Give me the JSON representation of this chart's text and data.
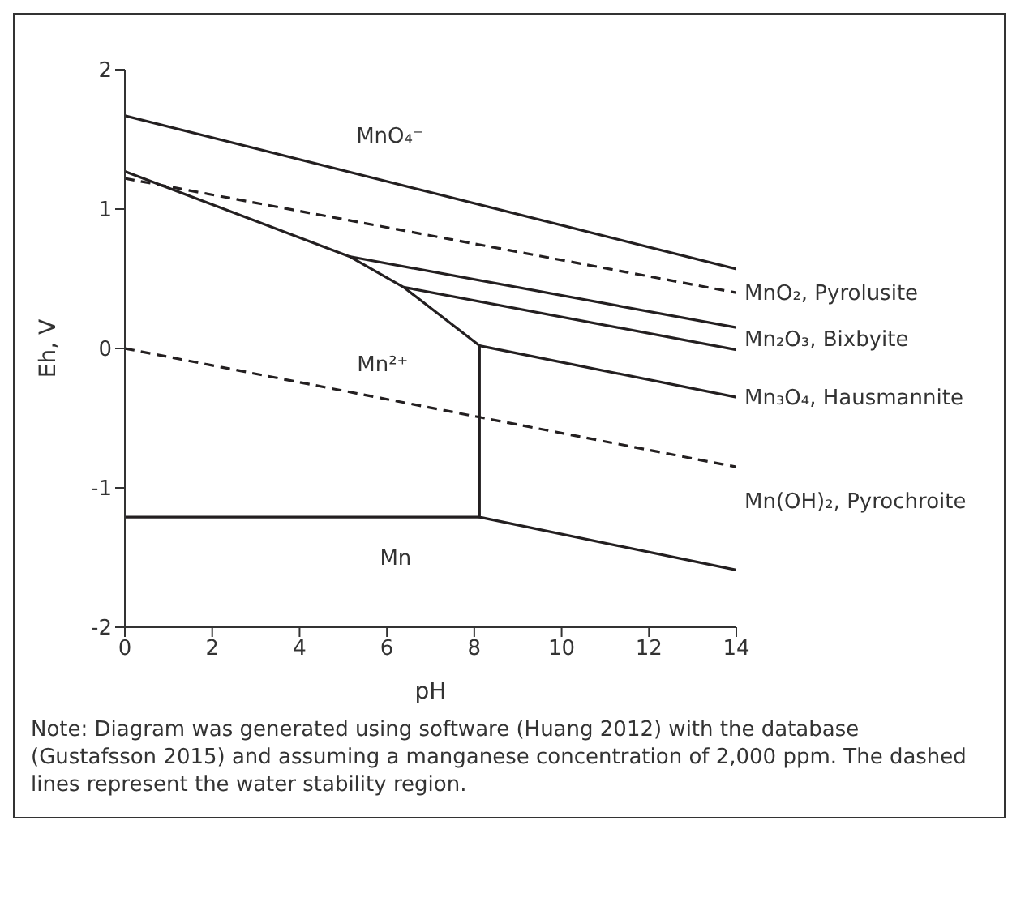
{
  "chart_data": {
    "type": "line",
    "xlabel": "pH",
    "ylabel": "Eh, V",
    "xlim": [
      0,
      14
    ],
    "ylim": [
      -2,
      2
    ],
    "xticks": [
      0,
      2,
      4,
      6,
      8,
      10,
      12,
      14
    ],
    "yticks": [
      -2,
      -1,
      0,
      1,
      2
    ],
    "grid": false,
    "marker": "none",
    "series": [
      {
        "color": "#231f20",
        "x": [
          0,
          14
        ],
        "values": [
          1.67,
          0.57
        ]
      },
      {
        "color": "#231f20",
        "line_style": "dashed",
        "x": [
          0,
          14
        ],
        "values": [
          1.22,
          0.4
        ]
      },
      {
        "color": "#231f20",
        "x": [
          0,
          5.14,
          6.38,
          8.12,
          8.12,
          14
        ],
        "values": [
          1.27,
          0.66,
          0.44,
          0.02,
          -1.21,
          -1.59
        ]
      },
      {
        "color": "#231f20",
        "x": [
          5.14,
          14
        ],
        "values": [
          0.66,
          0.15
        ]
      },
      {
        "color": "#231f20",
        "x": [
          6.38,
          14
        ],
        "values": [
          0.44,
          -0.01
        ]
      },
      {
        "color": "#231f20",
        "x": [
          8.12,
          14
        ],
        "values": [
          0.02,
          -0.35
        ]
      },
      {
        "color": "#231f20",
        "x": [
          0,
          8.12
        ],
        "values": [
          -1.21,
          -1.21
        ]
      },
      {
        "color": "#231f20",
        "line_style": "dashed",
        "x": [
          0,
          14
        ],
        "values": [
          0,
          -0.85
        ]
      }
    ],
    "annotations": [
      {
        "text": "MnO₂, Pyrolusite",
        "x": 14,
        "y": 0.4
      },
      {
        "text": "Mn₃O₄, Hausmannite",
        "x": 14,
        "y": -0.35
      },
      "MnO₄⁻",
      "Mn²⁺",
      "Mn",
      "Mn₂O₃, Bixbyite",
      "Mn(OH)₂, Pyrochroite",
      "Note: Diagram was generated using software (Huang 2012) with the database (Gustafsson 2015) and assuming a manganese concentration of 2,000 ppm. The dashed lines represent the water stability region."
    ]
  }
}
